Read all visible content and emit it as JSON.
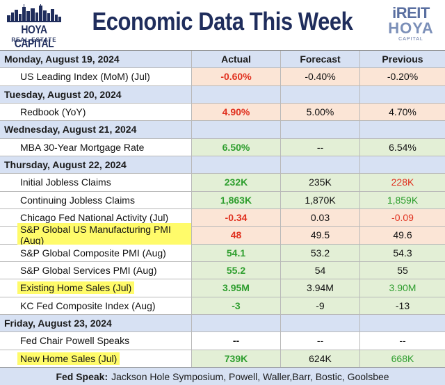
{
  "header": {
    "logo_left_main": "HOYA CAPITAL",
    "logo_left_sub": "REAL ESTATE",
    "title": "Economic Data This Week",
    "logo_right_top": "iREIT",
    "logo_right_mid": "HOYA",
    "logo_right_sub": "CAPITAL"
  },
  "colors": {
    "navy": "#1f2d5c",
    "day_row_bg": "#d7e1f3",
    "green_text": "#2e9e2e",
    "red_text": "#e0301e",
    "green_bg": "#e3efd6",
    "red_bg": "#fbe5d6",
    "highlight": "#fffb6a"
  },
  "columns": [
    "Actual",
    "Forecast",
    "Previous"
  ],
  "rows": [
    {
      "kind": "day",
      "label": "Monday, August 19, 2024",
      "show_columns": true
    },
    {
      "kind": "data",
      "label": "US Leading Index (MoM) (Jul)",
      "highlight": false,
      "actual": {
        "text": "-0.60%",
        "tone": "red"
      },
      "forecast": {
        "text": "-0.40%",
        "tone": "red"
      },
      "previous": {
        "text": "-0.20%",
        "tone": "red"
      }
    },
    {
      "kind": "day",
      "label": "Tuesday, August 20, 2024"
    },
    {
      "kind": "data",
      "label": "Redbook (YoY)",
      "highlight": false,
      "actual": {
        "text": "4.90%",
        "tone": "red"
      },
      "forecast": {
        "text": "5.00%",
        "tone": "red"
      },
      "previous": {
        "text": "4.70%",
        "tone": "red"
      }
    },
    {
      "kind": "day",
      "label": "Wednesday, August 21, 2024"
    },
    {
      "kind": "data",
      "label": "MBA 30-Year Mortgage Rate",
      "highlight": false,
      "actual": {
        "text": "6.50%",
        "tone": "green"
      },
      "forecast": {
        "text": "--",
        "tone": "green"
      },
      "previous": {
        "text": "6.54%",
        "tone": "green"
      }
    },
    {
      "kind": "day",
      "label": "Thursday, August 22, 2024"
    },
    {
      "kind": "data",
      "label": "Initial Jobless Claims",
      "highlight": false,
      "actual": {
        "text": "232K",
        "tone": "green"
      },
      "forecast": {
        "text": "235K",
        "tone": "green"
      },
      "previous": {
        "text": "228K",
        "tone": "green",
        "text_tone": "red"
      }
    },
    {
      "kind": "data",
      "label": "Continuing Jobless Claims",
      "highlight": false,
      "actual": {
        "text": "1,863K",
        "tone": "green"
      },
      "forecast": {
        "text": "1,870K",
        "tone": "green"
      },
      "previous": {
        "text": "1,859K",
        "tone": "green",
        "text_tone": "green"
      }
    },
    {
      "kind": "data",
      "label": "Chicago Fed National Activity (Jul)",
      "highlight": false,
      "actual": {
        "text": "-0.34",
        "tone": "red"
      },
      "forecast": {
        "text": "0.03",
        "tone": "red"
      },
      "previous": {
        "text": "-0.09",
        "tone": "red",
        "text_tone": "red"
      }
    },
    {
      "kind": "data",
      "label": "S&P Global US Manufacturing PMI (Aug)",
      "highlight": true,
      "actual": {
        "text": "48",
        "tone": "red"
      },
      "forecast": {
        "text": "49.5",
        "tone": "red"
      },
      "previous": {
        "text": "49.6",
        "tone": "red"
      }
    },
    {
      "kind": "data",
      "label": "S&P Global Composite PMI (Aug)",
      "highlight": false,
      "actual": {
        "text": "54.1",
        "tone": "green"
      },
      "forecast": {
        "text": "53.2",
        "tone": "green"
      },
      "previous": {
        "text": "54.3",
        "tone": "green"
      }
    },
    {
      "kind": "data",
      "label": "S&P Global Services PMI (Aug)",
      "highlight": false,
      "actual": {
        "text": "55.2",
        "tone": "green"
      },
      "forecast": {
        "text": "54",
        "tone": "green"
      },
      "previous": {
        "text": "55",
        "tone": "green"
      }
    },
    {
      "kind": "data",
      "label": "Existing Home Sales (Jul)",
      "highlight": true,
      "actual": {
        "text": "3.95M",
        "tone": "green"
      },
      "forecast": {
        "text": "3.94M",
        "tone": "green"
      },
      "previous": {
        "text": "3.90M",
        "tone": "green",
        "text_tone": "green"
      }
    },
    {
      "kind": "data",
      "label": "KC Fed Composite Index (Aug)",
      "highlight": false,
      "actual": {
        "text": "-3",
        "tone": "green"
      },
      "forecast": {
        "text": "-9",
        "tone": "green"
      },
      "previous": {
        "text": "-13",
        "tone": "green"
      }
    },
    {
      "kind": "day",
      "label": "Friday, August 23, 2024"
    },
    {
      "kind": "data",
      "label": "Fed Chair Powell Speaks",
      "highlight": false,
      "actual": {
        "text": "--",
        "tone": "none"
      },
      "forecast": {
        "text": "--",
        "tone": "none"
      },
      "previous": {
        "text": "--",
        "tone": "none"
      }
    },
    {
      "kind": "data",
      "label": "New Home Sales (Jul)",
      "highlight": true,
      "actual": {
        "text": "739K",
        "tone": "green"
      },
      "forecast": {
        "text": "624K",
        "tone": "green"
      },
      "previous": {
        "text": "668K",
        "tone": "green",
        "text_tone": "green"
      }
    }
  ],
  "footer": {
    "label": "Fed Speak:",
    "text": "Jackson Hole Symposium, Powell, Waller,Barr,  Bostic, Goolsbee"
  }
}
